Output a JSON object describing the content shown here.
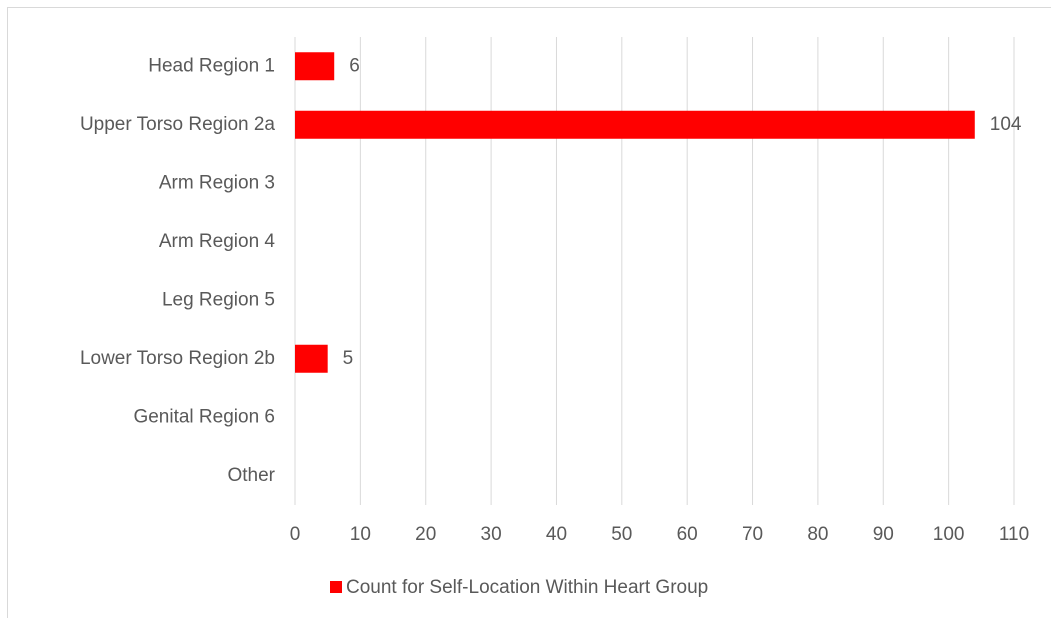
{
  "chart_data": {
    "type": "bar",
    "orientation": "horizontal",
    "categories": [
      "Head Region 1",
      "Upper Torso Region 2a",
      "Arm Region 3",
      "Arm Region 4",
      "Leg Region 5",
      "Lower Torso Region 2b",
      "Genital Region 6",
      "Other"
    ],
    "series": [
      {
        "name": "Count for Self-Location Within Heart Group",
        "color": "#ff0000",
        "values": [
          6,
          104,
          null,
          null,
          null,
          5,
          null,
          null
        ]
      }
    ],
    "xlim": [
      0,
      110
    ],
    "xticks": [
      0,
      10,
      20,
      30,
      40,
      50,
      60,
      70,
      80,
      90,
      100,
      110
    ],
    "grid": true,
    "legend": "bottom"
  }
}
